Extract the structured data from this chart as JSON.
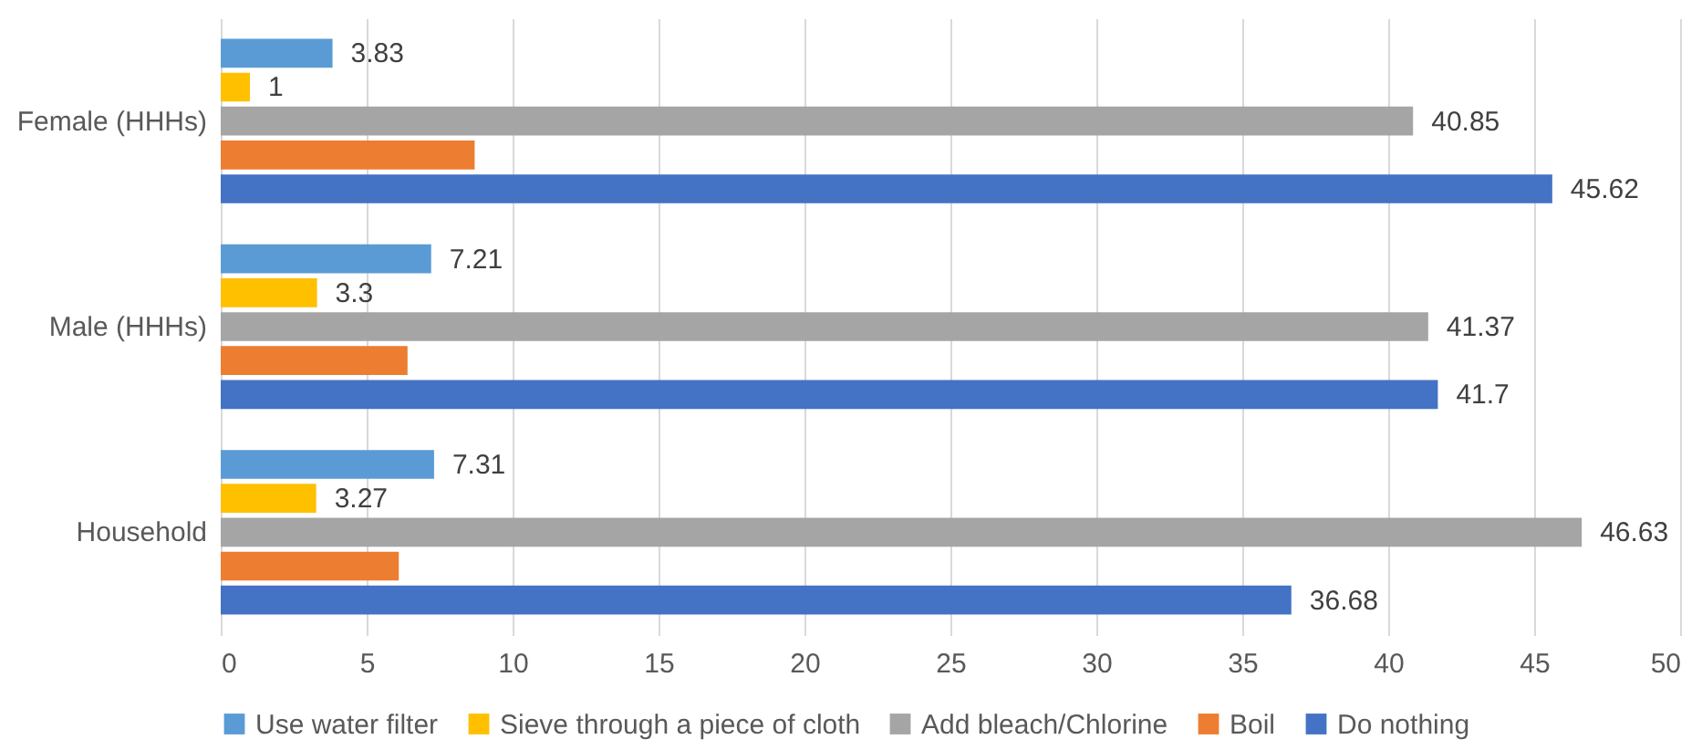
{
  "chart_data": {
    "type": "bar",
    "orientation": "horizontal",
    "categories": [
      "Female (HHHs)",
      "Male (HHHs)",
      "Household"
    ],
    "series": [
      {
        "name": "Use water filter",
        "color": "#5b9bd5",
        "values": [
          3.83,
          7.21,
          7.31
        ],
        "value_labels": [
          "3.83",
          "7.21",
          "7.31"
        ]
      },
      {
        "name": "Sieve through a piece of cloth",
        "color": "#ffc000",
        "values": [
          1,
          3.3,
          3.27
        ],
        "value_labels": [
          "1",
          "3.3",
          "3.27"
        ]
      },
      {
        "name": "Add bleach/Chlorine",
        "color": "#a5a5a5",
        "values": [
          40.85,
          41.37,
          46.63
        ],
        "value_labels": [
          "40.85",
          "41.37",
          "46.63"
        ]
      },
      {
        "name": "Boil",
        "color": "#ed7d31",
        "values": [
          8.7,
          6.4,
          6.1
        ],
        "value_labels": [
          null,
          null,
          null
        ]
      },
      {
        "name": "Do nothing",
        "color": "#4472c4",
        "values": [
          45.62,
          41.7,
          36.68
        ],
        "value_labels": [
          "45.62",
          "41.7",
          "36.68"
        ]
      }
    ],
    "xlim": [
      0,
      50
    ],
    "xticks": [
      0,
      5,
      10,
      15,
      20,
      25,
      30,
      35,
      40,
      45,
      50
    ],
    "grid": "x",
    "legend": "bottom"
  }
}
